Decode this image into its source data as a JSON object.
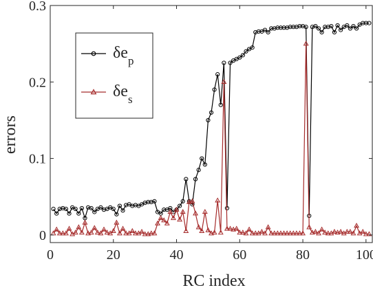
{
  "chart_data": {
    "type": "line",
    "xlabel": "RC index",
    "ylabel": "errors",
    "xlim": [
      0,
      102
    ],
    "ylim": [
      -0.01,
      0.3
    ],
    "xticks": [
      0,
      20,
      40,
      60,
      80,
      100
    ],
    "yticks": [
      0,
      0.1,
      0.2,
      0.3
    ],
    "xtick_labels": [
      "0",
      "20",
      "40",
      "60",
      "80",
      "100"
    ],
    "ytick_labels": [
      "0",
      "0.1",
      "0.2",
      "0.3"
    ],
    "grid": false,
    "legend_position": "top-left",
    "series": [
      {
        "name": "δe",
        "subscript": "p",
        "color": "#000000",
        "marker": "circle",
        "x": [
          1,
          2,
          3,
          4,
          5,
          6,
          7,
          8,
          9,
          10,
          11,
          12,
          13,
          14,
          15,
          16,
          17,
          18,
          19,
          20,
          21,
          22,
          23,
          24,
          25,
          26,
          27,
          28,
          29,
          30,
          31,
          32,
          33,
          34,
          35,
          36,
          37,
          38,
          39,
          40,
          41,
          42,
          43,
          44,
          45,
          46,
          47,
          48,
          49,
          50,
          51,
          52,
          53,
          54,
          55,
          56,
          57,
          58,
          59,
          60,
          61,
          62,
          63,
          64,
          65,
          66,
          67,
          68,
          69,
          70,
          71,
          72,
          73,
          74,
          75,
          76,
          77,
          78,
          79,
          80,
          81,
          82,
          83,
          84,
          85,
          86,
          87,
          88,
          89,
          90,
          91,
          92,
          93,
          94,
          95,
          96,
          97,
          98,
          99,
          100,
          101
        ],
        "values": [
          0.034,
          0.028,
          0.034,
          0.035,
          0.034,
          0.028,
          0.036,
          0.034,
          0.028,
          0.035,
          0.022,
          0.036,
          0.035,
          0.03,
          0.034,
          0.036,
          0.033,
          0.034,
          0.036,
          0.034,
          0.027,
          0.038,
          0.032,
          0.039,
          0.04,
          0.038,
          0.039,
          0.038,
          0.04,
          0.042,
          0.043,
          0.043,
          0.044,
          0.03,
          0.028,
          0.033,
          0.033,
          0.035,
          0.03,
          0.033,
          0.038,
          0.044,
          0.073,
          0.044,
          0.04,
          0.073,
          0.085,
          0.1,
          0.092,
          0.15,
          0.16,
          0.19,
          0.21,
          0.17,
          0.225,
          0.035,
          0.225,
          0.228,
          0.23,
          0.232,
          0.235,
          0.24,
          0.243,
          0.245,
          0.265,
          0.266,
          0.266,
          0.268,
          0.265,
          0.27,
          0.27,
          0.271,
          0.271,
          0.271,
          0.271,
          0.272,
          0.272,
          0.272,
          0.273,
          0.273,
          0.272,
          0.025,
          0.272,
          0.273,
          0.27,
          0.265,
          0.272,
          0.272,
          0.273,
          0.265,
          0.274,
          0.268,
          0.272,
          0.274,
          0.27,
          0.273,
          0.27,
          0.275,
          0.277,
          0.277,
          0.277
        ]
      },
      {
        "name": "δe",
        "subscript": "s",
        "color": "#a52a2a",
        "marker": "triangle",
        "x": [
          1,
          2,
          3,
          4,
          5,
          6,
          7,
          8,
          9,
          10,
          11,
          12,
          13,
          14,
          15,
          16,
          17,
          18,
          19,
          20,
          21,
          22,
          23,
          24,
          25,
          26,
          27,
          28,
          29,
          30,
          31,
          32,
          33,
          34,
          35,
          36,
          37,
          38,
          39,
          40,
          41,
          42,
          43,
          44,
          45,
          46,
          47,
          48,
          49,
          50,
          51,
          52,
          53,
          54,
          55,
          56,
          57,
          58,
          59,
          60,
          61,
          62,
          63,
          64,
          65,
          66,
          67,
          68,
          69,
          70,
          71,
          72,
          73,
          74,
          75,
          76,
          77,
          78,
          79,
          80,
          81,
          82,
          83,
          84,
          85,
          86,
          87,
          88,
          89,
          90,
          91,
          92,
          93,
          94,
          95,
          96,
          97,
          98,
          99,
          100,
          101
        ],
        "values": [
          0.002,
          0.007,
          0.002,
          0.002,
          0.002,
          0.008,
          0.001,
          0.003,
          0.01,
          0.003,
          0.016,
          0.002,
          0.003,
          0.009,
          0.003,
          0.002,
          0.007,
          0.003,
          0.002,
          0.005,
          0.016,
          0.002,
          0.008,
          0.002,
          0.002,
          0.005,
          0.002,
          0.002,
          0.004,
          0.001,
          0.001,
          0.002,
          0.002,
          0.015,
          0.022,
          0.019,
          0.015,
          0.03,
          0.022,
          0.033,
          0.02,
          0.03,
          0.005,
          0.043,
          0.044,
          0.028,
          0.01,
          0.005,
          0.03,
          0.006,
          0.002,
          0.003,
          0.045,
          0.003,
          0.2,
          0.008,
          0.008,
          0.007,
          0.008,
          0.003,
          0.003,
          0.002,
          0.007,
          0.002,
          0.002,
          0.002,
          0.004,
          0.002,
          0.01,
          0.002,
          0.002,
          0.002,
          0.002,
          0.002,
          0.002,
          0.002,
          0.002,
          0.002,
          0.002,
          0.002,
          0.25,
          0.01,
          0.003,
          0.004,
          0.002,
          0.007,
          0.003,
          0.002,
          0.002,
          0.004,
          0.003,
          0.004,
          0.002,
          0.004,
          0.004,
          0.002,
          0.012,
          0.002,
          0.004,
          0.001,
          0.001
        ]
      }
    ]
  }
}
